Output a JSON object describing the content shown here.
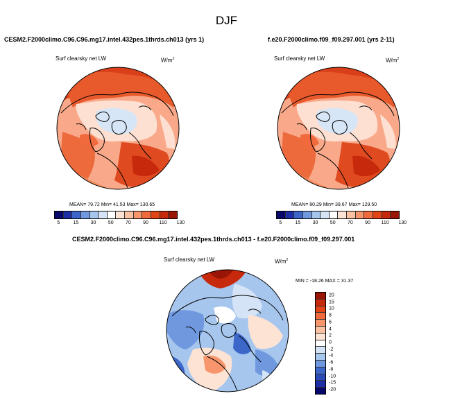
{
  "title": "DJF",
  "panels": {
    "left": {
      "case": "CESM2.F2000climo.C96.C96.mg17.intel.432pes.1thrds.ch013 (yrs 1)",
      "variable": "Surf clearsky net LW",
      "units": "W/m",
      "units_sup": "2",
      "stats": "MEAN=  79.72  Min=  41.53  Max= 130.65"
    },
    "right": {
      "case": "f.e20.F2000climo.f09_f09.297.001 (yrs 2-11)",
      "variable": "Surf clearsky net LW",
      "units": "W/m",
      "units_sup": "2",
      "stats": "MEAN=  80.29  Min=  39.67  Max= 129.50"
    },
    "diff": {
      "case": "CESM2.F2000climo.C96.C96.mg17.intel.432pes.1thrds.ch013 - f.e20.F2000climo.f09_f09.297.001",
      "variable": "Surf clearsky net LW",
      "units": "W/m",
      "units_sup": "2",
      "stats": "MIN = -18.26 MAX =  31.37"
    }
  },
  "colorbar_main": {
    "ticks": [
      "5",
      "15",
      "30",
      "50",
      "70",
      "90",
      "110",
      "130"
    ],
    "colors": [
      "#08086b",
      "#1e2fa6",
      "#3d66c9",
      "#6f98df",
      "#a6c6ee",
      "#d4e4f6",
      "#ffffff",
      "#fde3d4",
      "#fbc1a3",
      "#f7966c",
      "#f06a3d",
      "#e24418",
      "#c6290c",
      "#991505"
    ]
  },
  "colorbar_diff": {
    "ticks": [
      "20",
      "15",
      "10",
      "8",
      "6",
      "4",
      "2",
      "0",
      "-2",
      "-4",
      "-6",
      "-8",
      "-10",
      "-15",
      "-20"
    ],
    "colors": [
      "#991505",
      "#c6290c",
      "#e24418",
      "#f06a3d",
      "#f7966c",
      "#fbc1a3",
      "#fde3d4",
      "#ffffff",
      "#d4e4f6",
      "#a6c6ee",
      "#6f98df",
      "#3d66c9",
      "#2a4bb8",
      "#1e2fa6",
      "#08086b"
    ]
  }
}
